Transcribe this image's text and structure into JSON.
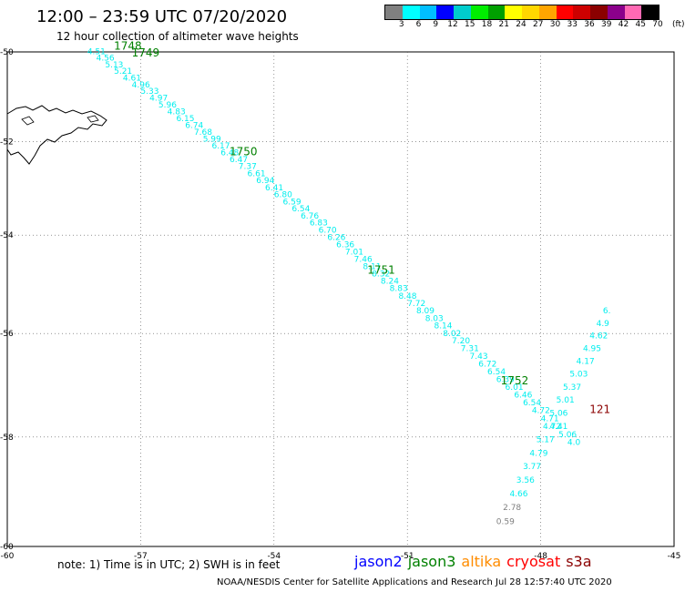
{
  "header": {
    "title": "12:00 – 23:59 UTC 07/20/2020",
    "subtitle": "12 hour collection of altimeter wave heights"
  },
  "colorbar": {
    "colors": [
      "#808080",
      "#00ffff",
      "#00bfff",
      "#0000ff",
      "#00cdcd",
      "#00ee00",
      "#00a000",
      "#ffff00",
      "#ffd700",
      "#ffa500",
      "#ff0000",
      "#cd0000",
      "#8b0000",
      "#8b008b",
      "#ff69b4",
      "#000000"
    ],
    "labels": [
      "3",
      "6",
      "9",
      "12",
      "15",
      "18",
      "21",
      "24",
      "27",
      "30",
      "33",
      "36",
      "39",
      "42",
      "45",
      "70",
      "(ft)"
    ]
  },
  "map": {
    "lon_range": [
      -60,
      -45
    ],
    "lat_range": [
      -60,
      -50
    ],
    "lon_ticks": [
      "-60",
      "-57",
      "-54",
      "-51",
      "-48",
      "-45"
    ],
    "lat_ticks": [
      "-50",
      "-52",
      "-54",
      "-56",
      "-58",
      "-60"
    ],
    "land": "falkland-islands"
  },
  "tracks": [
    {
      "satellite": "jason3",
      "color": "#00eeee",
      "time_color": "#008000",
      "heights": [
        {
          "value": "4.51",
          "lon": -58.2,
          "lat": -50.05
        },
        {
          "value": "4.56",
          "lon": -58.0,
          "lat": -50.2
        },
        {
          "value": "5.13",
          "lon": -57.8,
          "lat": -50.35
        },
        {
          "value": "5.21",
          "lon": -57.6,
          "lat": -50.5
        },
        {
          "value": "4.61",
          "lon": -57.4,
          "lat": -50.65
        },
        {
          "value": "4.96",
          "lon": -57.2,
          "lat": -50.8
        },
        {
          "value": "5.33",
          "lon": -57.0,
          "lat": -50.95
        },
        {
          "value": "4.97",
          "lon": -56.8,
          "lat": -51.1
        },
        {
          "value": "5.96",
          "lon": -56.6,
          "lat": -51.25
        },
        {
          "value": "4.83",
          "lon": -56.4,
          "lat": -51.4
        },
        {
          "value": "6.15",
          "lon": -56.2,
          "lat": -51.55
        },
        {
          "value": "6.74",
          "lon": -56.0,
          "lat": -51.7
        },
        {
          "value": "7.68",
          "lon": -55.8,
          "lat": -51.85
        },
        {
          "value": "5.99",
          "lon": -55.6,
          "lat": -52.0
        },
        {
          "value": "6.17",
          "lon": -55.4,
          "lat": -52.15
        },
        {
          "value": "6.48",
          "lon": -55.2,
          "lat": -52.3
        },
        {
          "value": "6.47",
          "lon": -55.0,
          "lat": -52.45
        },
        {
          "value": "7.37",
          "lon": -54.8,
          "lat": -52.6
        },
        {
          "value": "6.61",
          "lon": -54.6,
          "lat": -52.75
        },
        {
          "value": "6.94",
          "lon": -54.4,
          "lat": -52.9
        },
        {
          "value": "6.41",
          "lon": -54.2,
          "lat": -53.05
        },
        {
          "value": "6.80",
          "lon": -54.0,
          "lat": -53.2
        },
        {
          "value": "6.59",
          "lon": -53.8,
          "lat": -53.35
        },
        {
          "value": "6.54",
          "lon": -53.6,
          "lat": -53.5
        },
        {
          "value": "6.76",
          "lon": -53.4,
          "lat": -53.65
        },
        {
          "value": "6.83",
          "lon": -53.2,
          "lat": -53.8
        },
        {
          "value": "6.70",
          "lon": -53.0,
          "lat": -53.95
        },
        {
          "value": "6.26",
          "lon": -52.8,
          "lat": -54.1
        },
        {
          "value": "6.36",
          "lon": -52.6,
          "lat": -54.25
        },
        {
          "value": "7.01",
          "lon": -52.4,
          "lat": -54.4
        },
        {
          "value": "7.46",
          "lon": -52.2,
          "lat": -54.55
        },
        {
          "value": "8.11",
          "lon": -52.0,
          "lat": -54.7
        },
        {
          "value": "8.32",
          "lon": -51.8,
          "lat": -54.85
        },
        {
          "value": "8.24",
          "lon": -51.6,
          "lat": -55.0
        },
        {
          "value": "8.83",
          "lon": -51.4,
          "lat": -55.15
        },
        {
          "value": "8.48",
          "lon": -51.2,
          "lat": -55.3
        },
        {
          "value": "7.72",
          "lon": -51.0,
          "lat": -55.45
        },
        {
          "value": "8.09",
          "lon": -50.8,
          "lat": -55.6
        },
        {
          "value": "8.03",
          "lon": -50.6,
          "lat": -55.75
        },
        {
          "value": "8.14",
          "lon": -50.4,
          "lat": -55.9
        },
        {
          "value": "8.02",
          "lon": -50.2,
          "lat": -56.05
        },
        {
          "value": "7.20",
          "lon": -50.0,
          "lat": -56.2
        },
        {
          "value": "7.31",
          "lon": -49.8,
          "lat": -56.35
        },
        {
          "value": "7.43",
          "lon": -49.6,
          "lat": -56.5
        },
        {
          "value": "6.72",
          "lon": -49.4,
          "lat": -56.65
        },
        {
          "value": "6.54",
          "lon": -49.2,
          "lat": -56.8
        },
        {
          "value": "6.39",
          "lon": -49.0,
          "lat": -56.95
        },
        {
          "value": "6.01",
          "lon": -48.8,
          "lat": -57.1
        },
        {
          "value": "6.46",
          "lon": -48.6,
          "lat": -57.25
        },
        {
          "value": "6.54",
          "lon": -48.4,
          "lat": -57.4
        },
        {
          "value": "4.72",
          "lon": -48.2,
          "lat": -57.55
        },
        {
          "value": "4.71",
          "lon": -48.0,
          "lat": -57.7
        },
        {
          "value": "4.41",
          "lon": -47.8,
          "lat": -57.85
        },
        {
          "value": "5.06",
          "lon": -47.6,
          "lat": -58.0
        },
        {
          "value": "4.0",
          "lon": -47.4,
          "lat": -58.15
        }
      ],
      "times": [
        {
          "value": "1748",
          "lon": -57.6,
          "lat": -49.95
        },
        {
          "value": "1749",
          "lon": -57.2,
          "lat": -50.1
        },
        {
          "value": "1750",
          "lon": -55.0,
          "lat": -52.3
        },
        {
          "value": "1751",
          "lon": -51.9,
          "lat": -54.8
        },
        {
          "value": "1752",
          "lon": -48.9,
          "lat": -57.0
        }
      ]
    },
    {
      "satellite": "s3a",
      "color": "#00eeee",
      "time_color": "#8b0000",
      "heights": [
        {
          "value": "4.66",
          "lon": -48.7,
          "lat": -59.1
        },
        {
          "value": "3.56",
          "lon": -48.55,
          "lat": -58.85
        },
        {
          "value": "3.77",
          "lon": -48.4,
          "lat": -58.6
        },
        {
          "value": "4.79",
          "lon": -48.25,
          "lat": -58.35
        },
        {
          "value": "5.17",
          "lon": -48.1,
          "lat": -58.1
        },
        {
          "value": "4.72",
          "lon": -47.95,
          "lat": -57.85
        },
        {
          "value": "5.06",
          "lon": -47.8,
          "lat": -57.6
        },
        {
          "value": "5.01",
          "lon": -47.65,
          "lat": -57.35
        },
        {
          "value": "5.37",
          "lon": -47.5,
          "lat": -57.1
        },
        {
          "value": "5.03",
          "lon": -47.35,
          "lat": -56.85
        },
        {
          "value": "4.17",
          "lon": -47.2,
          "lat": -56.6
        },
        {
          "value": "4.95",
          "lon": -47.05,
          "lat": -56.35
        },
        {
          "value": "4.62",
          "lon": -46.9,
          "lat": -56.1
        },
        {
          "value": "4.9",
          "lon": -46.75,
          "lat": -55.85
        },
        {
          "value": "6.",
          "lon": -46.6,
          "lat": -55.6
        }
      ],
      "low_quality": [
        {
          "value": "2.78",
          "lon": -48.85,
          "lat": -59.35
        },
        {
          "value": "0.59",
          "lon": -49.0,
          "lat": -59.6
        }
      ],
      "times": [
        {
          "value": "121",
          "lon": -46.9,
          "lat": -57.55
        }
      ]
    }
  ],
  "footer": {
    "note": "note:  1) Time is in UTC;  2) SWH is in feet",
    "satellites": [
      {
        "name": "jason2",
        "color": "#0000ff"
      },
      {
        "name": "jason3",
        "color": "#008000"
      },
      {
        "name": "altika",
        "color": "#ff8c00"
      },
      {
        "name": "cryosat",
        "color": "#ff0000"
      },
      {
        "name": "s3a",
        "color": "#8b0000"
      }
    ],
    "credit": "NOAA/NESDIS Center for Satellite Applications and Research    Jul 28 12:57:40 UTC 2020"
  }
}
